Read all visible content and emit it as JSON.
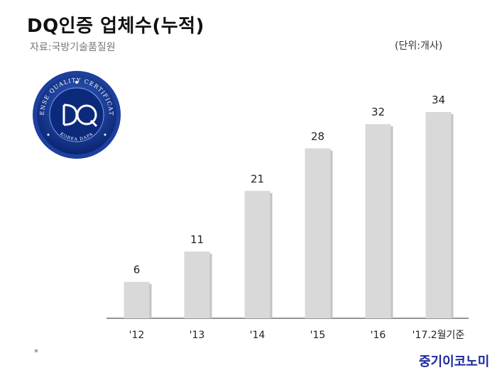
{
  "title": "DQ인증 업체수(누적)",
  "source": "자료:국방기술품질원",
  "unit": "(단위:개사)",
  "footnote": "*",
  "brand": "중기이코노미",
  "logo": {
    "top_text": "DEFENSE QUALITY CERTIFICATION",
    "bottom_text": "KOREA DAPA",
    "center_text": "DQ",
    "colors": {
      "ring": "#1d3f9e",
      "inner": "#0c2a7c",
      "accent": "#ffffff"
    }
  },
  "colors": {
    "bar": "#d9d9d9",
    "axis": "#555555",
    "label": "#222222"
  },
  "chart_data": {
    "type": "bar",
    "categories": [
      "'12",
      "'13",
      "'14",
      "'15",
      "'16",
      "'17.2월기준"
    ],
    "values": [
      6,
      11,
      21,
      28,
      32,
      34
    ],
    "title": "DQ인증 업체수(누적)",
    "xlabel": "",
    "ylabel": "",
    "ylim": [
      0,
      34
    ],
    "grid": false,
    "legend": "none",
    "data_labels": true
  }
}
